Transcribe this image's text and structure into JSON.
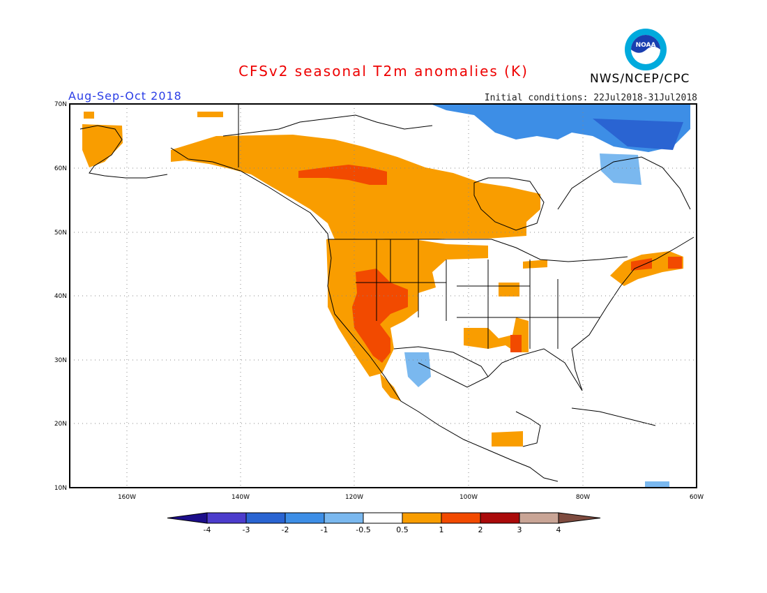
{
  "title": "CFSv2 seasonal T2m anomalies (K)",
  "period": "Aug-Sep-Oct 2018",
  "initial_conditions": "Initial conditions: 22Jul2018-31Jul2018",
  "organization": "NWS/NCEP/CPC",
  "logo_text": "NOAA",
  "colors": {
    "title": "#ee0000",
    "period": "#2a3de6",
    "logo_ring": "#00aadd",
    "logo_center": "#1a3fb0"
  },
  "map": {
    "lat_ticks": [
      "70N",
      "60N",
      "50N",
      "40N",
      "30N",
      "20N",
      "10N"
    ],
    "lon_ticks": [
      "160W",
      "140W",
      "120W",
      "100W",
      "80W",
      "60W"
    ]
  },
  "colorbar": {
    "labels": [
      "-4",
      "-3",
      "-2",
      "-1",
      "-0.5",
      "0.5",
      "1",
      "2",
      "3",
      "4"
    ],
    "colors": [
      "#1c0e8a",
      "#4c3ccc",
      "#2a64d2",
      "#3d8ee6",
      "#7ab8ef",
      "#ffffff",
      "#f99d00",
      "#f24a00",
      "#aa0a0a",
      "#c9a596",
      "#7e4b3f"
    ]
  },
  "anomaly_regions": [
    {
      "name": "alaska-canada-west",
      "category": "0.5 to 1"
    },
    {
      "name": "hudson-bay-north",
      "category": "-2 to -1"
    },
    {
      "name": "labrador",
      "category": "-1 to -0.5"
    },
    {
      "name": "southwest-us",
      "category": "1 to 2"
    },
    {
      "name": "south-central-us",
      "category": "0.5 to 1"
    },
    {
      "name": "new-england",
      "category": "0.5 to 1"
    },
    {
      "name": "northwest-mexico",
      "category": "-1 to -0.5"
    }
  ]
}
